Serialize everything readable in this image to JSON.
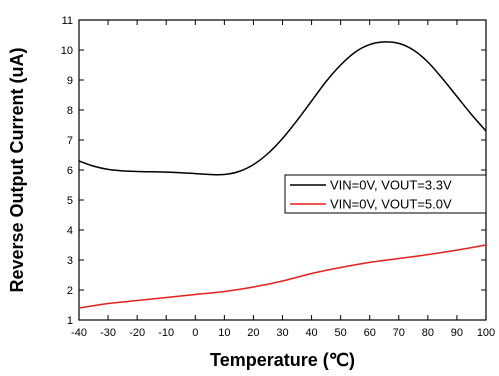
{
  "chart_data": {
    "type": "line",
    "xlabel": "Temperature (℃)",
    "ylabel": "Reverse Output Current (uA)",
    "xlim": [
      -40,
      100
    ],
    "ylim": [
      1,
      11
    ],
    "x_ticks": [
      -40,
      -30,
      -20,
      -10,
      0,
      10,
      20,
      30,
      40,
      50,
      60,
      70,
      80,
      90,
      100
    ],
    "y_ticks": [
      1,
      2,
      3,
      4,
      5,
      6,
      7,
      8,
      9,
      10,
      11
    ],
    "grid": false,
    "legend_position": "right",
    "series": [
      {
        "name": "VIN=0V, VOUT=3.3V",
        "color": "#000000",
        "x": [
          -40,
          -35,
          -30,
          -25,
          -20,
          -15,
          -10,
          -5,
          0,
          5,
          10,
          15,
          20,
          25,
          30,
          35,
          40,
          45,
          50,
          55,
          60,
          65,
          70,
          75,
          80,
          85,
          90,
          95,
          100
        ],
        "y": [
          6.3,
          6.13,
          6.02,
          5.97,
          5.95,
          5.94,
          5.93,
          5.91,
          5.88,
          5.85,
          5.85,
          5.95,
          6.18,
          6.55,
          7.05,
          7.65,
          8.3,
          8.95,
          9.5,
          9.93,
          10.18,
          10.27,
          10.22,
          10.0,
          9.6,
          9.05,
          8.45,
          7.85,
          7.3
        ]
      },
      {
        "name": "VIN=0V, VOUT=5.0V",
        "color": "#e8211a",
        "x": [
          -40,
          -30,
          -20,
          -10,
          0,
          10,
          20,
          30,
          40,
          50,
          60,
          70,
          80,
          90,
          100
        ],
        "y": [
          1.4,
          1.55,
          1.65,
          1.75,
          1.85,
          1.95,
          2.1,
          2.3,
          2.55,
          2.75,
          2.92,
          3.05,
          3.18,
          3.33,
          3.5
        ]
      }
    ]
  }
}
